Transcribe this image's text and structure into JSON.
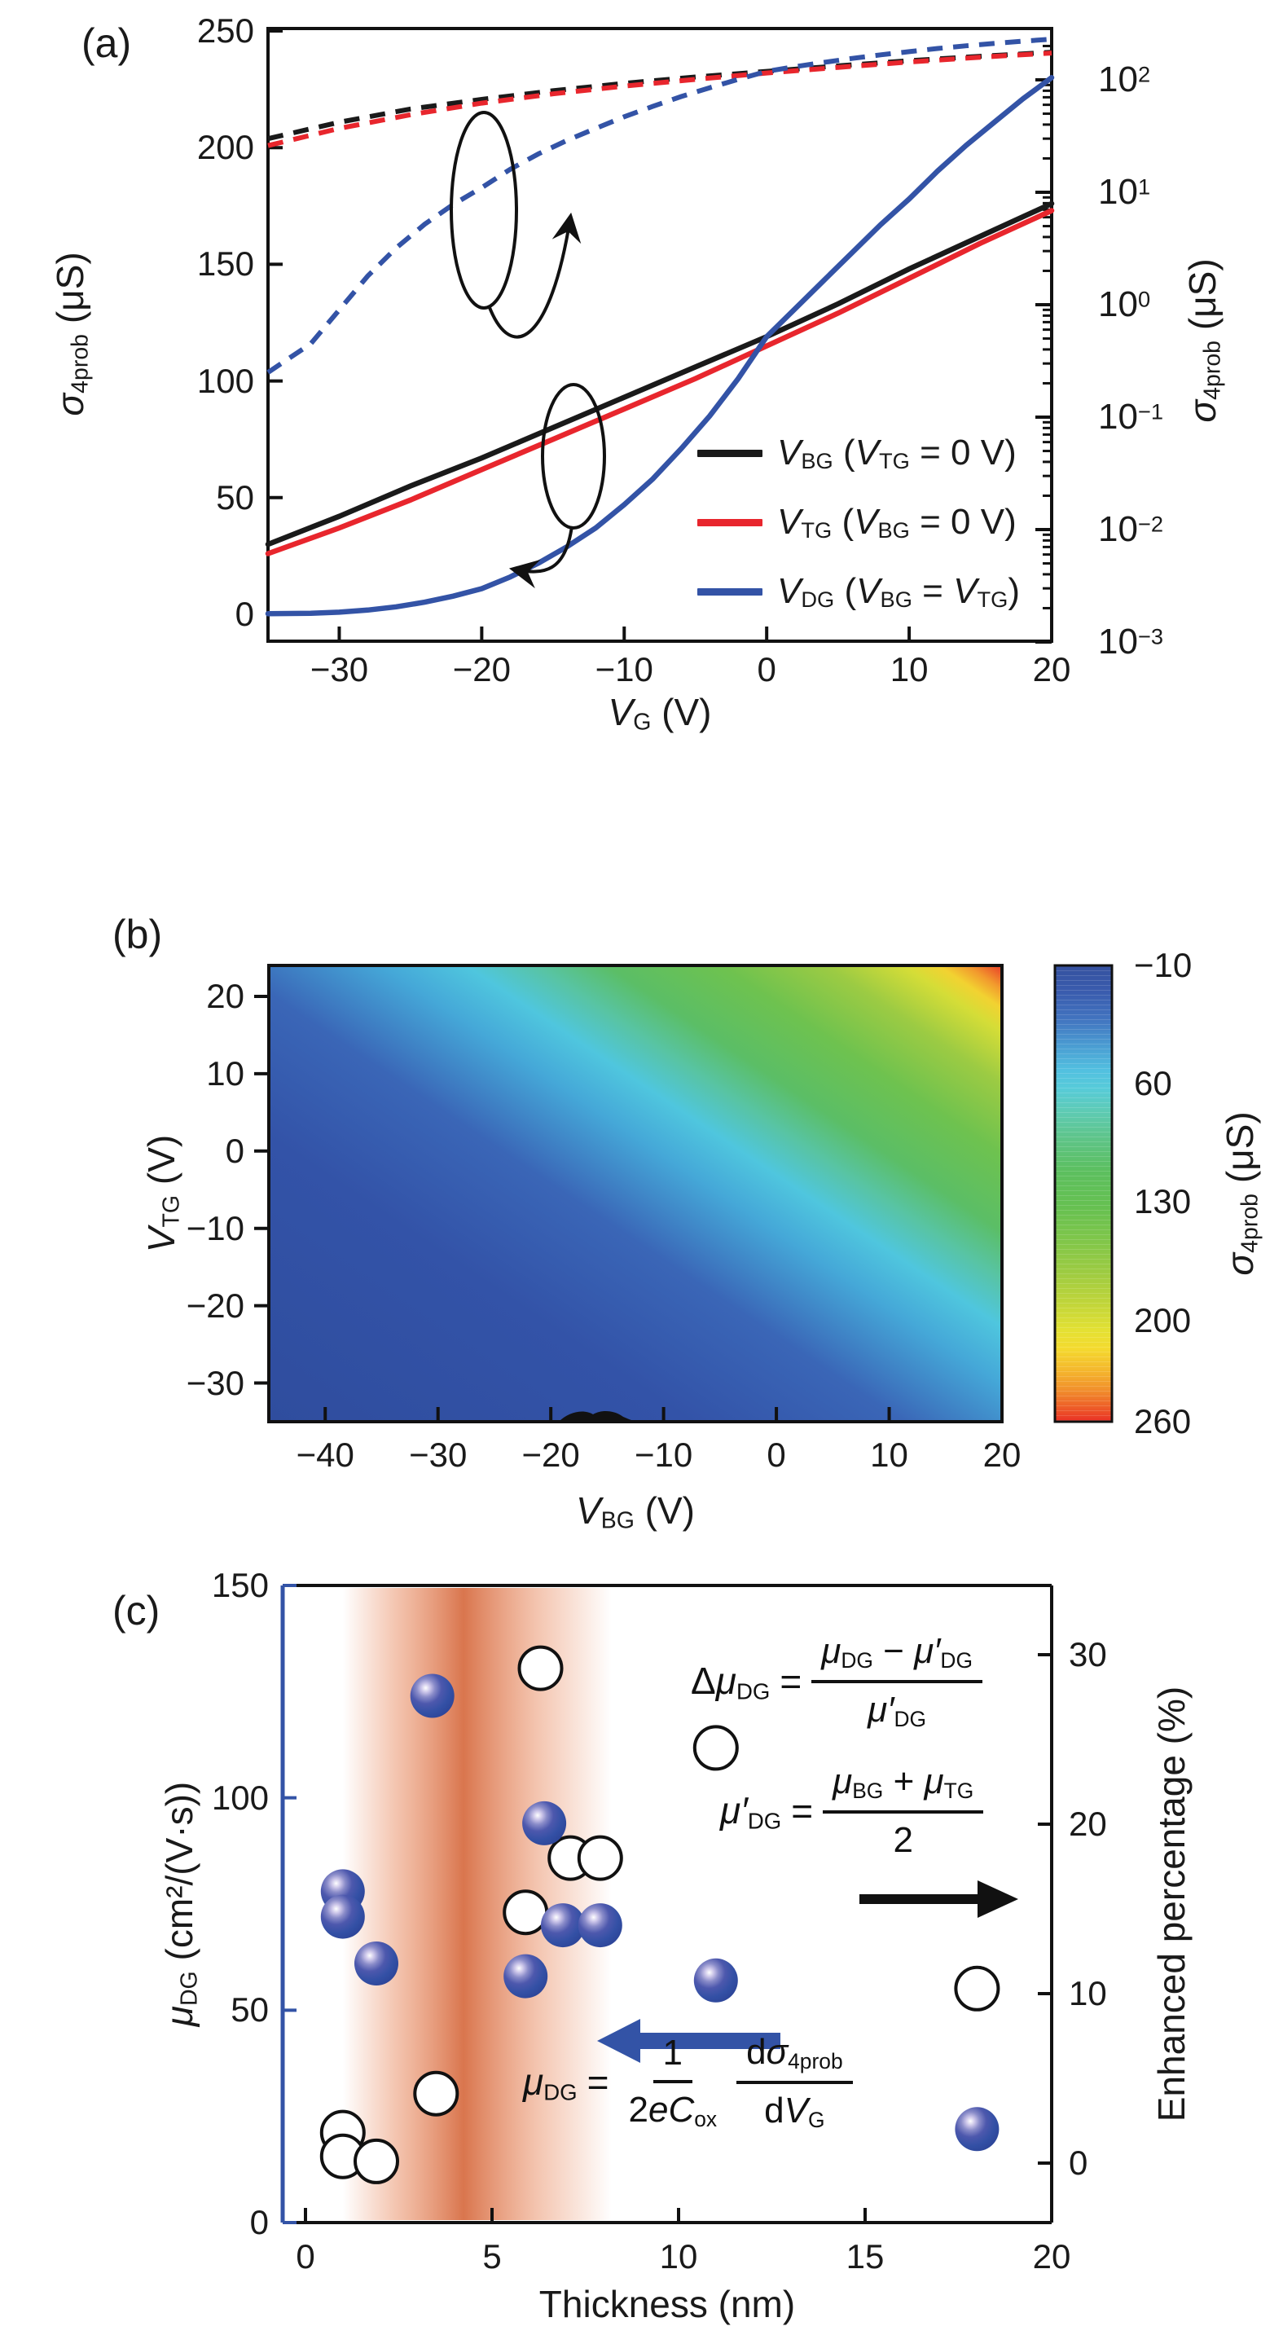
{
  "chart_data": [
    {
      "panel_label": "(a)",
      "type": "line",
      "x_axis": {
        "title_frag": [
          [
            "V",
            "i"
          ],
          [
            "G",
            "s"
          ],
          [
            " (V)",
            ""
          ]
        ],
        "min": -35,
        "max": 20,
        "ticks": [
          -30,
          -20,
          -10,
          0,
          10,
          20
        ]
      },
      "y_left": {
        "title_frag": [
          [
            "σ",
            "i"
          ],
          [
            "4prob",
            "s"
          ],
          [
            " (μS)",
            ""
          ]
        ],
        "min": 0,
        "max": 250,
        "ticks": [
          250,
          200,
          150,
          100,
          50,
          0
        ]
      },
      "y_right": {
        "title_frag": [
          [
            "σ",
            "i"
          ],
          [
            "4prob",
            "s"
          ],
          [
            " (μS)",
            ""
          ]
        ],
        "scale": "log",
        "tick_exponents": [
          2,
          1,
          0,
          -1,
          -2,
          -3
        ]
      },
      "style_note": "each series drawn solid against left linear axis and dashed against right log axis",
      "series": [
        {
          "id": "vbg",
          "color": "#1a1a1a",
          "legend_frag": [
            [
              "V",
              "i"
            ],
            [
              "BG",
              "s"
            ],
            [
              " (",
              ""
            ],
            [
              "V",
              "i"
            ],
            [
              "TG",
              "s"
            ],
            [
              " = 0 V)",
              ""
            ]
          ],
          "points": [
            [
              -35,
              30
            ],
            [
              -30,
              42
            ],
            [
              -25,
              55
            ],
            [
              -20,
              67
            ],
            [
              -15,
              80
            ],
            [
              -10,
              93
            ],
            [
              -5,
              106
            ],
            [
              0,
              119
            ],
            [
              5,
              133
            ],
            [
              10,
              148
            ],
            [
              15,
              162
            ],
            [
              20,
              176
            ]
          ]
        },
        {
          "id": "vtg",
          "color": "#e8262d",
          "legend_frag": [
            [
              "V",
              "i"
            ],
            [
              "TG",
              "s"
            ],
            [
              " (",
              ""
            ],
            [
              "V",
              "i"
            ],
            [
              "BG",
              "s"
            ],
            [
              " = 0 V)",
              ""
            ]
          ],
          "points": [
            [
              -35,
              26
            ],
            [
              -30,
              37
            ],
            [
              -25,
              49
            ],
            [
              -20,
              62
            ],
            [
              -15,
              75
            ],
            [
              -10,
              88
            ],
            [
              -5,
              101
            ],
            [
              0,
              115
            ],
            [
              5,
              129
            ],
            [
              10,
              144
            ],
            [
              15,
              159
            ],
            [
              20,
              173
            ]
          ]
        },
        {
          "id": "vdg",
          "color": "#3353a6",
          "legend_frag": [
            [
              "V",
              "i"
            ],
            [
              "DG",
              "s"
            ],
            [
              " (",
              ""
            ],
            [
              "V",
              "i"
            ],
            [
              "BG",
              "s"
            ],
            [
              " = ",
              ""
            ],
            [
              "V",
              "i"
            ],
            [
              "TG",
              "s"
            ],
            [
              ")",
              ""
            ]
          ],
          "points": [
            [
              -35,
              0.25
            ],
            [
              -32,
              0.45
            ],
            [
              -30,
              0.9
            ],
            [
              -28,
              1.8
            ],
            [
              -26,
              3.2
            ],
            [
              -24,
              5.2
            ],
            [
              -22,
              7.8
            ],
            [
              -20,
              11
            ],
            [
              -18,
              16
            ],
            [
              -16,
              22
            ],
            [
              -14,
              29
            ],
            [
              -12,
              37
            ],
            [
              -10,
              47
            ],
            [
              -8,
              58
            ],
            [
              -6,
              71
            ],
            [
              -4,
              85
            ],
            [
              -2,
              101
            ],
            [
              0,
              119
            ],
            [
              2,
              131
            ],
            [
              4,
              143
            ],
            [
              6,
              155
            ],
            [
              8,
              167
            ],
            [
              10,
              178
            ],
            [
              12,
              190
            ],
            [
              14,
              201
            ],
            [
              16,
              211
            ],
            [
              18,
              221
            ],
            [
              20,
              230
            ]
          ]
        }
      ]
    },
    {
      "panel_label": "(b)",
      "type": "heatmap",
      "x_axis": {
        "title_frag": [
          [
            "V",
            "i"
          ],
          [
            "BG",
            "s"
          ],
          [
            " (V)",
            ""
          ]
        ],
        "min": -45,
        "max": 20,
        "ticks": [
          -40,
          -30,
          -20,
          -10,
          0,
          10,
          20
        ]
      },
      "y_axis": {
        "title_frag": [
          [
            "V",
            "i"
          ],
          [
            "TG",
            "s"
          ],
          [
            " (V)",
            ""
          ]
        ],
        "min": -35,
        "max": 24,
        "ticks": [
          20,
          10,
          0,
          -10,
          -20,
          -30
        ]
      },
      "colorbar": {
        "title_frag": [
          [
            "σ",
            "i"
          ],
          [
            "4prob",
            "s"
          ],
          [
            " (μS)",
            ""
          ]
        ],
        "min": -10,
        "max": 260,
        "ticks": [
          -10,
          60,
          130,
          200,
          260
        ],
        "stops": [
          "#35519f",
          "#3a5cae",
          "#4275c0",
          "#4b9fd3",
          "#52c0e0",
          "#57cbd9",
          "#5ecbb4",
          "#5ec488",
          "#5cbf5f",
          "#66c051",
          "#7fc64a",
          "#9ccb42",
          "#c0d53a",
          "#e4e133",
          "#f4da2f",
          "#f4b52d",
          "#f1902c",
          "#ed5b28",
          "#e92f26"
        ],
        "stop_pos": [
          0,
          6,
          12,
          18,
          23,
          27,
          32,
          38,
          45,
          53,
          60,
          67,
          74,
          80,
          84,
          89,
          93,
          97,
          100
        ]
      },
      "surface_gradient": {
        "angle_deg": 34,
        "stops": [
          "#2f4d9e",
          "#3353a8",
          "#3a66b7",
          "#45a8d8",
          "#4fc6de",
          "#58c4a4",
          "#5bbe66",
          "#6ec24f",
          "#9ccb43",
          "#d5dd37",
          "#f2d231",
          "#f29a2d",
          "#e93a28"
        ],
        "stop_pos": [
          0,
          30,
          45,
          56,
          62,
          67,
          72,
          80,
          87.5,
          93,
          95.5,
          97.5,
          100
        ]
      },
      "value_trend": "sigma_4prob increases from about -10 uS at bottom-left (V_BG=-45, V_TG=-35) to about 260 uS at the top-right corner (V_BG=20, V_TG=24); small black contour blob on bottom edge near V_BG=-22"
    },
    {
      "panel_label": "(c)",
      "type": "scatter",
      "x_axis": {
        "title": "Thickness (nm)",
        "min": -0.6,
        "max": 20,
        "ticks": [
          0,
          5,
          10,
          15,
          20
        ]
      },
      "y_left": {
        "title_frag": [
          [
            "μ",
            "i"
          ],
          [
            "DG",
            "s"
          ],
          [
            " (cm²/(V·s))",
            ""
          ]
        ],
        "min": 0,
        "max": 150,
        "ticks": [
          150,
          100,
          50,
          0
        ],
        "axis_color": "#3353a6"
      },
      "y_right": {
        "title": "Enhanced percentage (%)",
        "ticks": [
          30,
          20,
          10,
          0
        ]
      },
      "series": [
        {
          "id": "mu-dg",
          "marker": "blue-sphere",
          "axis": "left",
          "color": "#3353a6",
          "points": [
            [
              3.4,
              124
            ],
            [
              6.4,
              94
            ],
            [
              6.9,
              70
            ],
            [
              7.9,
              70
            ],
            [
              1.0,
              78
            ],
            [
              1.0,
              72
            ],
            [
              1.9,
              61
            ],
            [
              5.9,
              58
            ],
            [
              11,
              57
            ],
            [
              18,
              22
            ]
          ]
        },
        {
          "id": "enhanced-percentage",
          "marker": "open-circle",
          "axis": "right",
          "color": "#111111",
          "points": [
            [
              6.3,
              29.2
            ],
            [
              11,
              24.5
            ],
            [
              7.1,
              18
            ],
            [
              7.9,
              18
            ],
            [
              5.9,
              14.8
            ],
            [
              18,
              10.3
            ],
            [
              3.5,
              4.1
            ],
            [
              1.0,
              1.8
            ],
            [
              1.0,
              0.4
            ],
            [
              1.9,
              0.1
            ]
          ]
        }
      ],
      "band": {
        "x_from": 1.0,
        "x_to": 8.2,
        "peak_color": "#d5663a",
        "edge_color": "#e8895e"
      },
      "equations": {
        "eq1": {
          "lhs": [
            [
              "Δ",
              ""
            ],
            [
              "μ",
              "i"
            ],
            [
              "DG",
              "s"
            ]
          ],
          "eq": "=",
          "num": [
            [
              "μ",
              "i"
            ],
            [
              "DG",
              "s"
            ],
            [
              " − ",
              ""
            ],
            [
              "μ′",
              "i"
            ],
            [
              "DG",
              "s"
            ]
          ],
          "den": [
            [
              "μ′",
              "i"
            ],
            [
              "DG",
              "s"
            ]
          ]
        },
        "eq2": {
          "lhs": [
            [
              "μ′",
              "i"
            ],
            [
              "DG",
              "s"
            ]
          ],
          "eq": "=",
          "num": [
            [
              "μ",
              "i"
            ],
            [
              "BG",
              "s"
            ],
            [
              " + ",
              ""
            ],
            [
              "μ",
              "i"
            ],
            [
              "TG",
              "s"
            ]
          ],
          "den": [
            [
              "2",
              ""
            ]
          ]
        },
        "eq3": {
          "lhs": [
            [
              "μ",
              "i"
            ],
            [
              "DG",
              "s"
            ]
          ],
          "eq": "=",
          "f1num": [
            [
              "1",
              ""
            ]
          ],
          "f1den": [
            [
              "2",
              ""
            ],
            [
              "e",
              "i"
            ],
            [
              "C",
              "i"
            ],
            [
              "ox",
              "s"
            ]
          ],
          "f2num": [
            [
              "d",
              ""
            ],
            [
              "σ",
              "i"
            ],
            [
              "4prob",
              "s"
            ]
          ],
          "f2den": [
            [
              "d",
              ""
            ],
            [
              "V",
              "i"
            ],
            [
              "G",
              "s"
            ]
          ]
        }
      },
      "arrows": {
        "left_arrow_color": "#3353a6",
        "right_arrow_color": "#111111"
      }
    }
  ]
}
